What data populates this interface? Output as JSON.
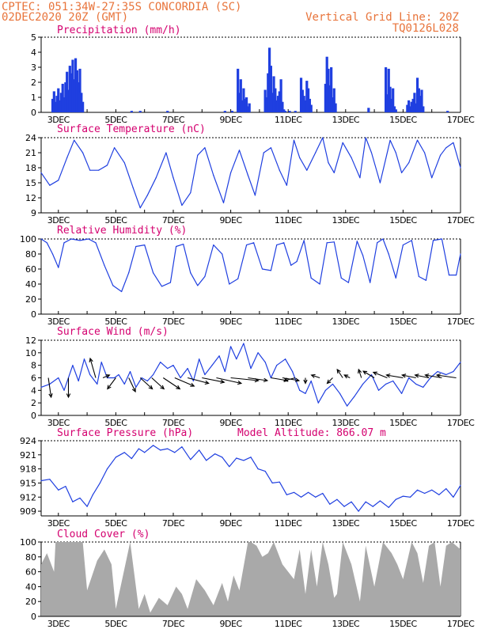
{
  "header": {
    "line1_left": "CPTEC:   051:34W-27:35S   CONCORDIA (SC)",
    "line2_left": "02DEC2020 20Z (GMT)",
    "line1_right": "Vertical Grid Line: 20Z",
    "line2_right": "TQ0126L028"
  },
  "colors": {
    "header": "#e8743b",
    "panel_title": "#d4006f",
    "series": "#1f3fe0",
    "cloud": "#a9a9a9",
    "wind_arrow": "#000000"
  },
  "x_axis": {
    "tick_labels": [
      "3DEC",
      "5DEC",
      "7DEC",
      "9DEC",
      "11DEC",
      "13DEC",
      "15DEC",
      "17DEC"
    ],
    "tick_day": [
      3,
      5,
      7,
      9,
      11,
      13,
      15,
      17
    ],
    "range_day": [
      2.4,
      17.0
    ]
  },
  "chart_data": [
    {
      "type": "bar",
      "title": "Precipitation (mm/h)",
      "ylim": [
        0,
        5
      ],
      "yticks": [
        0,
        1,
        2,
        3,
        4,
        5
      ],
      "x": [
        2.8,
        2.85,
        2.9,
        2.95,
        3.0,
        3.05,
        3.1,
        3.15,
        3.2,
        3.25,
        3.3,
        3.35,
        3.4,
        3.45,
        3.5,
        3.55,
        3.6,
        3.65,
        3.7,
        3.75,
        3.8,
        3.85,
        5.55,
        5.85,
        6.8,
        8.8,
        9.05,
        9.25,
        9.3,
        9.35,
        9.4,
        9.45,
        9.5,
        9.55,
        9.6,
        9.65,
        10.2,
        10.25,
        10.3,
        10.35,
        10.4,
        10.45,
        10.5,
        10.55,
        10.6,
        10.65,
        10.7,
        10.75,
        10.8,
        10.85,
        10.9,
        11.05,
        11.25,
        11.45,
        11.5,
        11.55,
        11.6,
        11.65,
        11.7,
        11.75,
        11.8,
        12.3,
        12.35,
        12.4,
        12.45,
        12.5,
        12.55,
        12.6,
        12.65,
        13.8,
        14.4,
        14.45,
        14.5,
        14.55,
        14.6,
        14.65,
        14.7,
        14.75,
        15.15,
        15.2,
        15.25,
        15.3,
        15.35,
        15.4,
        15.45,
        15.5,
        15.55,
        15.6,
        15.65,
        15.7,
        16.55
      ],
      "values": [
        0.9,
        1.4,
        0.7,
        1.1,
        1.6,
        0.8,
        1.3,
        1.9,
        1.0,
        2.0,
        2.7,
        1.5,
        3.1,
        2.6,
        3.5,
        2.2,
        3.6,
        2.8,
        2.0,
        2.9,
        1.3,
        0.7,
        0.1,
        0.1,
        0.1,
        0.1,
        0.1,
        2.9,
        1.3,
        2.2,
        0.8,
        1.6,
        0.9,
        1.0,
        0.4,
        0.6,
        1.5,
        1.0,
        2.6,
        4.3,
        3.1,
        1.3,
        2.4,
        1.6,
        0.8,
        1.1,
        1.4,
        2.2,
        0.7,
        0.2,
        0.1,
        0.1,
        0.1,
        2.3,
        1.5,
        1.1,
        0.8,
        2.1,
        1.6,
        0.9,
        0.5,
        1.9,
        3.7,
        2.9,
        1.8,
        3.0,
        1.0,
        1.6,
        0.6,
        0.3,
        3.0,
        1.2,
        2.9,
        1.7,
        0.9,
        1.6,
        0.4,
        0.2,
        0.5,
        0.8,
        0.4,
        0.7,
        0.9,
        1.3,
        0.6,
        2.3,
        1.6,
        1.1,
        1.5,
        0.4,
        0.1
      ]
    },
    {
      "type": "line",
      "title": "Surface Temperature (nC)",
      "ylim": [
        9,
        24
      ],
      "yticks": [
        9,
        12,
        15,
        18,
        21,
        24
      ],
      "x": [
        2.4,
        2.7,
        3.0,
        3.3,
        3.55,
        3.85,
        4.1,
        4.4,
        4.7,
        4.95,
        5.3,
        5.6,
        5.85,
        6.1,
        6.4,
        6.75,
        7.0,
        7.3,
        7.6,
        7.85,
        8.1,
        8.4,
        8.75,
        9.0,
        9.3,
        9.6,
        9.85,
        10.15,
        10.4,
        10.7,
        10.95,
        11.2,
        11.4,
        11.65,
        11.95,
        12.2,
        12.4,
        12.6,
        12.9,
        13.2,
        13.5,
        13.7,
        13.9,
        14.2,
        14.55,
        14.75,
        14.95,
        15.2,
        15.5,
        15.75,
        16.0,
        16.3,
        16.5,
        16.75,
        17.0
      ],
      "values": [
        17,
        14.5,
        15.5,
        20,
        23.5,
        21,
        17.5,
        17.5,
        18.5,
        22,
        19,
        14,
        10,
        12.5,
        16,
        21,
        16,
        10.5,
        13,
        20.5,
        22,
        16.5,
        11,
        17,
        21.5,
        16.5,
        12.5,
        21,
        22,
        17.5,
        14.5,
        23.5,
        20,
        17.5,
        21,
        24,
        19,
        17,
        23,
        20,
        16,
        24,
        21,
        15,
        23.5,
        21,
        17,
        19,
        23.5,
        21,
        16,
        20.5,
        22,
        23,
        18
      ]
    },
    {
      "type": "line",
      "title": "Relative Humidity (%)",
      "ylim": [
        0,
        100
      ],
      "yticks": [
        0,
        20,
        40,
        60,
        80,
        100
      ],
      "x": [
        2.4,
        2.6,
        2.8,
        3.0,
        3.2,
        3.45,
        3.75,
        4.05,
        4.3,
        4.6,
        4.9,
        5.2,
        5.45,
        5.7,
        6.0,
        6.3,
        6.6,
        6.9,
        7.1,
        7.35,
        7.6,
        7.85,
        8.1,
        8.4,
        8.7,
        8.95,
        9.25,
        9.55,
        9.8,
        10.1,
        10.4,
        10.6,
        10.85,
        11.1,
        11.3,
        11.55,
        11.8,
        12.1,
        12.35,
        12.6,
        12.85,
        13.1,
        13.4,
        13.6,
        13.85,
        14.1,
        14.3,
        14.5,
        14.75,
        15.0,
        15.3,
        15.55,
        15.8,
        16.05,
        16.35,
        16.6,
        16.85,
        17.0
      ],
      "values": [
        100,
        95,
        80,
        62,
        95,
        100,
        98,
        100,
        95,
        65,
        38,
        30,
        55,
        90,
        92,
        55,
        37,
        42,
        90,
        93,
        55,
        38,
        50,
        92,
        80,
        40,
        47,
        92,
        95,
        60,
        58,
        92,
        95,
        65,
        70,
        98,
        48,
        40,
        95,
        96,
        48,
        42,
        97,
        78,
        42,
        95,
        100,
        80,
        48,
        92,
        98,
        50,
        45,
        98,
        100,
        52,
        52,
        80
      ]
    },
    {
      "type": "line",
      "title": "Surface Wind (m/s)",
      "ylim": [
        0,
        12
      ],
      "yticks": [
        0,
        2,
        4,
        6,
        8,
        10,
        12
      ],
      "x": [
        2.4,
        2.7,
        3.0,
        3.2,
        3.5,
        3.7,
        3.9,
        4.1,
        4.35,
        4.5,
        4.7,
        4.95,
        5.1,
        5.3,
        5.5,
        5.7,
        5.9,
        6.1,
        6.3,
        6.55,
        6.8,
        7.0,
        7.25,
        7.5,
        7.7,
        7.9,
        8.1,
        8.35,
        8.6,
        8.8,
        9.0,
        9.2,
        9.45,
        9.7,
        9.95,
        10.2,
        10.4,
        10.6,
        10.9,
        11.15,
        11.4,
        11.6,
        11.8,
        12.05,
        12.3,
        12.55,
        12.8,
        13.05,
        13.3,
        13.6,
        13.9,
        14.15,
        14.4,
        14.65,
        14.95,
        15.2,
        15.45,
        15.7,
        15.95,
        16.2,
        16.5,
        16.75,
        17.0
      ],
      "values": [
        4.5,
        5,
        6,
        4,
        8,
        5.5,
        9,
        6.5,
        5,
        8.5,
        6,
        6,
        6.5,
        5,
        7,
        4.5,
        6,
        5.5,
        6.5,
        8.5,
        7.5,
        8,
        6,
        7.5,
        5.5,
        9,
        6.5,
        8,
        9.5,
        7,
        11,
        9,
        11.5,
        7.5,
        10,
        8.5,
        6,
        8,
        9,
        7,
        4,
        3.5,
        5.5,
        2,
        4,
        5,
        3.5,
        1.5,
        3,
        5,
        6.5,
        4,
        5,
        5.5,
        3.5,
        6,
        5,
        4.5,
        6,
        7,
        6.5,
        7,
        8.5
      ],
      "vectors": {
        "x": [
          2.65,
          3.35,
          4.3,
          4.55,
          5.0,
          5.45,
          5.85,
          6.25,
          6.65,
          7.05,
          7.5,
          8.0,
          8.5,
          9.0,
          9.6,
          10.4,
          10.8,
          11.25,
          11.6,
          12.1,
          12.55,
          12.9,
          13.15,
          13.55,
          14.0,
          14.45,
          15.0,
          15.45,
          15.9,
          16.35,
          16.85
        ],
        "u": [
          0.5,
          0,
          -1,
          1.2,
          -1.5,
          1.2,
          2.2,
          2.2,
          3,
          3.5,
          3.8,
          4,
          4.5,
          5,
          3.5,
          3,
          3,
          -2,
          0,
          -1.5,
          -1,
          -1,
          -1,
          -0.5,
          -2,
          -2.5,
          -3,
          -2.5,
          -2.5,
          -3,
          -3.5
        ],
        "v": [
          -3.5,
          -3.5,
          3.5,
          0.5,
          -2,
          -2.5,
          -2,
          -2,
          -2,
          -1.5,
          -1,
          -0.8,
          -1,
          -0.5,
          -0.5,
          -0.5,
          -0.5,
          -0.5,
          -1,
          0.5,
          -1,
          1.5,
          0.5,
          1.5,
          1.2,
          1,
          0.5,
          0.5,
          0.5,
          0.5,
          0.5
        ]
      }
    },
    {
      "type": "line",
      "title": "Surface Pressure (hPa)",
      "annotation": "Model Altitude: 866.07 m",
      "ylim": [
        908,
        924
      ],
      "yticks": [
        909,
        912,
        915,
        918,
        921,
        924
      ],
      "x": [
        2.4,
        2.7,
        3.0,
        3.25,
        3.5,
        3.75,
        4.0,
        4.2,
        4.45,
        4.7,
        5.0,
        5.3,
        5.55,
        5.8,
        6.0,
        6.3,
        6.55,
        6.8,
        7.05,
        7.3,
        7.6,
        7.9,
        8.15,
        8.45,
        8.7,
        8.95,
        9.2,
        9.45,
        9.7,
        9.95,
        10.2,
        10.45,
        10.7,
        10.95,
        11.2,
        11.45,
        11.7,
        11.95,
        12.2,
        12.45,
        12.7,
        12.95,
        13.2,
        13.45,
        13.7,
        13.95,
        14.2,
        14.5,
        14.75,
        15.0,
        15.25,
        15.5,
        15.75,
        16.0,
        16.25,
        16.5,
        16.75,
        17.0
      ],
      "values": [
        915.5,
        915.8,
        913.5,
        914.3,
        911,
        911.8,
        910,
        912.5,
        915,
        918,
        920.5,
        921.5,
        920.2,
        922.3,
        921.5,
        923,
        922,
        922.3,
        921.5,
        922.7,
        920,
        922,
        919.8,
        921.2,
        920.5,
        918.5,
        920.3,
        919.8,
        920.5,
        918,
        917.5,
        915,
        915.2,
        912.5,
        913,
        912,
        913,
        912,
        912.8,
        910.5,
        911.5,
        910,
        911,
        909,
        911,
        910,
        911.2,
        909.8,
        911.5,
        912.2,
        912,
        913.5,
        912.8,
        913.5,
        912.5,
        913.8,
        912,
        914.5
      ]
    },
    {
      "type": "area",
      "title": "Cloud Cover (%)",
      "ylim": [
        0,
        100
      ],
      "yticks": [
        0,
        20,
        40,
        60,
        80,
        100
      ],
      "x": [
        2.4,
        2.6,
        2.85,
        2.9,
        3.2,
        3.85,
        4.0,
        4.35,
        4.6,
        4.85,
        5.0,
        5.5,
        5.8,
        6.0,
        6.2,
        6.5,
        6.8,
        7.1,
        7.3,
        7.5,
        7.8,
        8.1,
        8.4,
        8.7,
        8.9,
        9.1,
        9.3,
        9.6,
        9.7,
        9.9,
        10.1,
        10.3,
        10.5,
        10.8,
        11.0,
        11.2,
        11.4,
        11.6,
        11.8,
        12.0,
        12.2,
        12.4,
        12.6,
        12.7,
        12.9,
        13.2,
        13.5,
        13.7,
        14.0,
        14.3,
        14.6,
        14.8,
        15.0,
        15.3,
        15.5,
        15.7,
        15.9,
        16.1,
        16.3,
        16.5,
        16.7,
        17.0
      ],
      "values": [
        70,
        85,
        60,
        100,
        100,
        100,
        35,
        75,
        90,
        70,
        10,
        100,
        10,
        30,
        5,
        25,
        15,
        40,
        30,
        10,
        50,
        35,
        15,
        45,
        20,
        55,
        35,
        100,
        100,
        95,
        80,
        85,
        100,
        70,
        60,
        50,
        90,
        30,
        90,
        40,
        100,
        70,
        25,
        30,
        100,
        70,
        20,
        95,
        40,
        100,
        85,
        70,
        50,
        100,
        85,
        45,
        95,
        100,
        40,
        95,
        100,
        90
      ]
    }
  ]
}
